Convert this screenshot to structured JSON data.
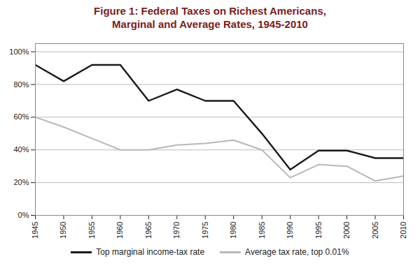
{
  "chart_data": {
    "type": "line",
    "title": "Figure 1: Federal Taxes on Richest Americans,\nMarginal and Average Rates, 1945-2010",
    "x": [
      1945,
      1950,
      1955,
      1960,
      1965,
      1970,
      1975,
      1980,
      1985,
      1990,
      1995,
      2000,
      2005,
      2010
    ],
    "xlim": [
      1945,
      2010
    ],
    "xticks": [
      1945,
      1950,
      1955,
      1960,
      1965,
      1970,
      1975,
      1980,
      1985,
      1990,
      1995,
      2000,
      2005,
      2010
    ],
    "ylim": [
      0,
      1.05
    ],
    "yticks": [
      {
        "value": 0,
        "label": "0%"
      },
      {
        "value": 0.2,
        "label": "20%"
      },
      {
        "value": 0.4,
        "label": "40%"
      },
      {
        "value": 0.6,
        "label": "60%"
      },
      {
        "value": 0.8,
        "label": "80%"
      },
      {
        "value": 1.0,
        "label": "100%"
      }
    ],
    "grid": "y",
    "legend": "bottom",
    "series": [
      {
        "name": "Top marginal income-tax rate",
        "color": "#1a1a1a",
        "values": [
          0.92,
          0.82,
          0.92,
          0.92,
          0.7,
          0.77,
          0.7,
          0.7,
          0.5,
          0.28,
          0.396,
          0.396,
          0.35,
          0.35
        ]
      },
      {
        "name": "Average tax rate, top 0.01%",
        "color": "#b8b8b8",
        "values": [
          0.6,
          0.54,
          0.47,
          0.4,
          0.4,
          0.43,
          0.44,
          0.46,
          0.4,
          0.23,
          0.31,
          0.3,
          0.21,
          0.24
        ]
      }
    ]
  }
}
